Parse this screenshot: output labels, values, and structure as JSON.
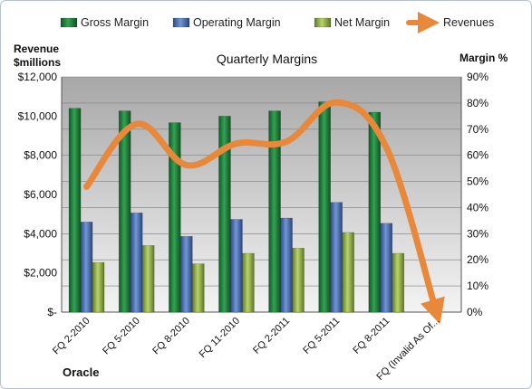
{
  "chart_data": {
    "type": "bar",
    "title": "Quarterly Margins",
    "company": "Oracle",
    "left_axis_label": [
      "Revenue",
      "$millions"
    ],
    "right_axis_label": "Margin %",
    "categories": [
      "FQ 2-2010",
      "FQ 5-2010",
      "FQ 8-2010",
      "FQ 11-2010",
      "FQ 2-2011",
      "FQ 5-2011",
      "FQ 8-2011",
      "FQ (Invalid As Of..."
    ],
    "left_ticks": [
      "$12,000",
      "$10,000",
      "$8,000",
      "$6,000",
      "$4,000",
      "$2,000",
      "$-"
    ],
    "right_ticks": [
      "90%",
      "80%",
      "70%",
      "60%",
      "50%",
      "40%",
      "30%",
      "20%",
      "10%",
      "0%"
    ],
    "ylim_left": [
      0,
      12000
    ],
    "ylim_right": [
      0,
      90
    ],
    "legend_position": "top",
    "series": [
      {
        "name": "Gross Margin",
        "type": "bar",
        "axis": "right",
        "color": "#1f7f3a",
        "values": [
          78,
          77,
          72.5,
          75,
          77,
          80.5,
          76.5,
          null
        ]
      },
      {
        "name": "Operating Margin",
        "type": "bar",
        "axis": "right",
        "color": "#4a6fb0",
        "values": [
          34.5,
          38,
          29,
          35.5,
          36,
          42,
          34,
          null
        ]
      },
      {
        "name": "Net Margin",
        "type": "bar",
        "axis": "right",
        "color": "#8fb04a",
        "values": [
          19,
          25.5,
          18.5,
          22.5,
          24.5,
          30.5,
          22.5,
          null
        ]
      },
      {
        "name": "Revenues",
        "type": "line",
        "axis": "left",
        "color": "#e8883a",
        "values": [
          6400,
          9600,
          7500,
          8600,
          8700,
          10700,
          8400,
          0
        ]
      }
    ]
  }
}
